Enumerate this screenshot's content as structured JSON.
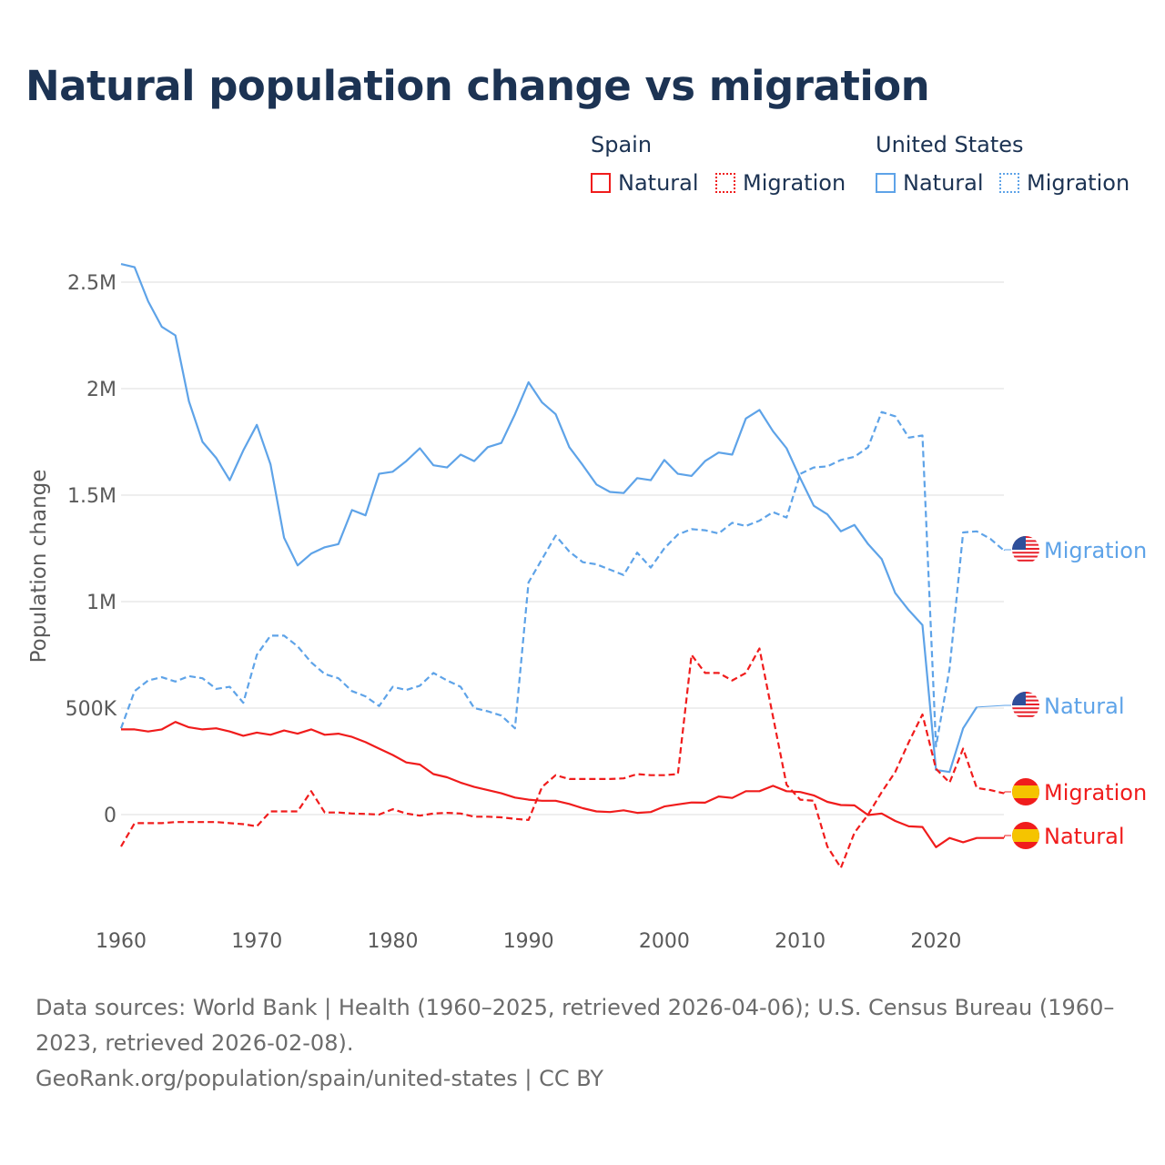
{
  "title": "Natural population change vs migration",
  "legend": {
    "groups": [
      {
        "name": "Spain",
        "items": [
          {
            "label": "Natural",
            "style": "solid",
            "color": "#f01c1c"
          },
          {
            "label": "Migration",
            "style": "dotted",
            "color": "#f01c1c"
          }
        ]
      },
      {
        "name": "United States",
        "items": [
          {
            "label": "Natural",
            "style": "solid",
            "color": "#5ea3e8"
          },
          {
            "label": "Migration",
            "style": "dotted",
            "color": "#5ea3e8"
          }
        ]
      }
    ]
  },
  "footer": {
    "sources": "Data sources: World Bank | Health (1960–2025, retrieved 2026-04-06); U.S. Census Bureau (1960–2023, retrieved 2026-02-08).",
    "credit": "GeoRank.org/population/spain/united-states | CC BY"
  },
  "chart_data": {
    "type": "line",
    "title": "Natural population change vs migration",
    "xlabel": "",
    "ylabel": "Population change",
    "xlim": [
      1960,
      2025
    ],
    "ylim": [
      -0.35,
      2.7
    ],
    "y_unit": "millions",
    "grid": true,
    "legend_placement": "top-right",
    "xticks": [
      {
        "v": 1960,
        "label": "1960"
      },
      {
        "v": 1970,
        "label": "1970"
      },
      {
        "v": 1980,
        "label": "1980"
      },
      {
        "v": 1990,
        "label": "1990"
      },
      {
        "v": 2000,
        "label": "2000"
      },
      {
        "v": 2010,
        "label": "2010"
      },
      {
        "v": 2020,
        "label": "2020"
      }
    ],
    "yticks": [
      {
        "v": 0,
        "label": "0"
      },
      {
        "v": 0.5,
        "label": "500K"
      },
      {
        "v": 1,
        "label": "1M"
      },
      {
        "v": 1.5,
        "label": "1.5M"
      },
      {
        "v": 2,
        "label": "2M"
      },
      {
        "v": 2.5,
        "label": "2.5M"
      }
    ],
    "series": [
      {
        "name": "United States Natural",
        "end_label": "Natural",
        "country": "us",
        "color": "#5ea3e8",
        "dashed": false,
        "start": 1960,
        "values": [
          2.585,
          2.57,
          2.41,
          2.29,
          2.25,
          1.94,
          1.75,
          1.675,
          1.57,
          1.71,
          1.83,
          1.645,
          1.3,
          1.17,
          1.225,
          1.255,
          1.27,
          1.43,
          1.405,
          1.6,
          1.61,
          1.66,
          1.72,
          1.64,
          1.63,
          1.69,
          1.66,
          1.725,
          1.745,
          1.88,
          2.03,
          1.935,
          1.88,
          1.725,
          1.64,
          1.55,
          1.515,
          1.51,
          1.58,
          1.57,
          1.665,
          1.6,
          1.59,
          1.66,
          1.7,
          1.69,
          1.86,
          1.9,
          1.8,
          1.72,
          1.58,
          1.45,
          1.41,
          1.33,
          1.36,
          1.27,
          1.2,
          1.04,
          0.96,
          0.89,
          0.21,
          0.2,
          0.405,
          0.505
        ]
      },
      {
        "name": "United States Migration",
        "end_label": "Migration",
        "country": "us",
        "color": "#5ea3e8",
        "dashed": true,
        "start": 1960,
        "values": [
          0.405,
          0.58,
          0.63,
          0.645,
          0.625,
          0.65,
          0.64,
          0.59,
          0.6,
          0.525,
          0.75,
          0.84,
          0.84,
          0.79,
          0.715,
          0.66,
          0.64,
          0.58,
          0.555,
          0.51,
          0.6,
          0.585,
          0.605,
          0.665,
          0.63,
          0.6,
          0.5,
          0.485,
          0.465,
          0.405,
          1.09,
          1.2,
          1.31,
          1.235,
          1.185,
          1.175,
          1.15,
          1.125,
          1.23,
          1.16,
          1.25,
          1.315,
          1.34,
          1.335,
          1.32,
          1.37,
          1.355,
          1.38,
          1.42,
          1.395,
          1.6,
          1.63,
          1.635,
          1.665,
          1.68,
          1.725,
          1.89,
          1.87,
          1.77,
          1.78,
          0.32,
          0.685,
          1.325,
          1.33,
          1.295,
          1.24
        ]
      },
      {
        "name": "Spain Natural",
        "end_label": "Natural",
        "country": "es",
        "color": "#f01c1c",
        "dashed": false,
        "start": 1960,
        "values": [
          0.4,
          0.4,
          0.39,
          0.4,
          0.435,
          0.41,
          0.4,
          0.405,
          0.39,
          0.37,
          0.385,
          0.375,
          0.395,
          0.38,
          0.4,
          0.375,
          0.38,
          0.365,
          0.34,
          0.31,
          0.28,
          0.245,
          0.235,
          0.19,
          0.175,
          0.15,
          0.13,
          0.115,
          0.1,
          0.08,
          0.07,
          0.065,
          0.065,
          0.05,
          0.03,
          0.015,
          0.012,
          0.02,
          0.008,
          0.012,
          0.038,
          0.048,
          0.057,
          0.056,
          0.085,
          0.078,
          0.11,
          0.11,
          0.135,
          0.11,
          0.106,
          0.09,
          0.06,
          0.045,
          0.043,
          -0.002,
          0.005,
          -0.03,
          -0.055,
          -0.058,
          -0.153,
          -0.11,
          -0.13,
          -0.11,
          -0.11,
          -0.11
        ]
      },
      {
        "name": "Spain Migration",
        "end_label": "Migration",
        "country": "es",
        "color": "#f01c1c",
        "dashed": true,
        "start": 1960,
        "values": [
          -0.15,
          -0.04,
          -0.04,
          -0.04,
          -0.035,
          -0.035,
          -0.035,
          -0.035,
          -0.04,
          -0.045,
          -0.055,
          0.015,
          0.015,
          0.015,
          0.11,
          0.01,
          0.01,
          0.005,
          0.003,
          0.0,
          0.025,
          0.005,
          -0.005,
          0.005,
          0.008,
          0.005,
          -0.01,
          -0.01,
          -0.013,
          -0.02,
          -0.025,
          0.13,
          0.185,
          0.167,
          0.167,
          0.167,
          0.167,
          0.17,
          0.19,
          0.185,
          0.185,
          0.19,
          0.75,
          0.665,
          0.665,
          0.63,
          0.665,
          0.78,
          0.46,
          0.14,
          0.07,
          0.065,
          -0.15,
          -0.25,
          -0.085,
          0.0,
          0.105,
          0.2,
          0.34,
          0.47,
          0.215,
          0.15,
          0.31,
          0.125,
          0.115,
          0.1
        ]
      }
    ]
  }
}
